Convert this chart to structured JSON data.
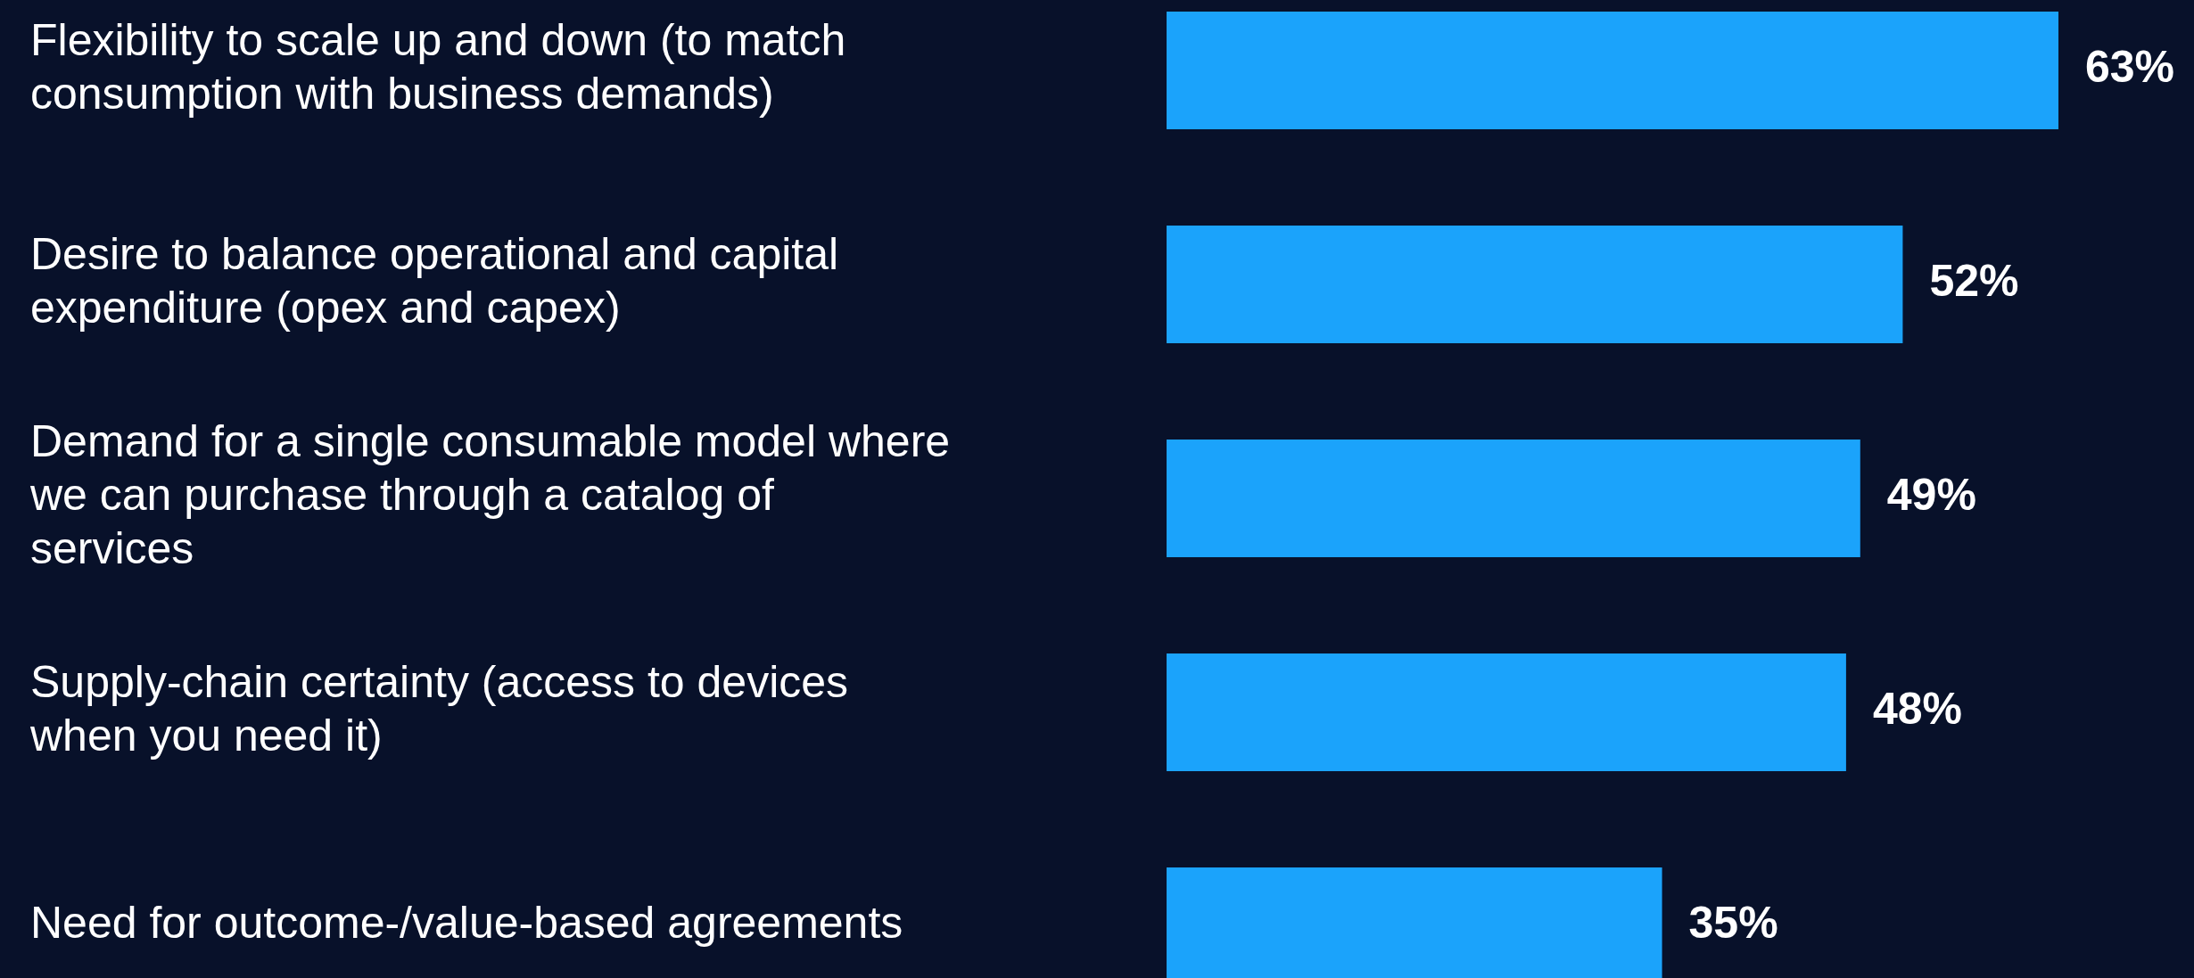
{
  "chart_data": {
    "type": "bar",
    "orientation": "horizontal",
    "categories": [
      "Flexibility to scale up and down (to match consumption with business demands)",
      "Desire to balance operational and capital expenditure (opex and capex)",
      "Demand for a single consumable model where we can purchase through a catalog of services",
      "Supply-chain certainty (access to devices when you need it)",
      "Need for outcome-/value-based agreements"
    ],
    "values": [
      63,
      52,
      49,
      48,
      35
    ],
    "value_labels": [
      "63%",
      "52%",
      "49%",
      "48%",
      "35%"
    ],
    "color": "#1ba3fb"
  }
}
